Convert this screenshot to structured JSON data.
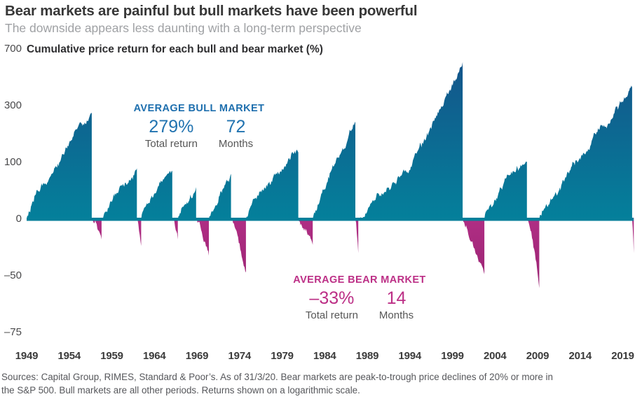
{
  "header": {
    "title": "Bear markets are painful but bull markets have been powerful",
    "subtitle": "The downside appears less daunting with a long-term perspective",
    "axis_title": "Cumulative price return for each bull and bear market (%)"
  },
  "annotations": {
    "bull": {
      "heading": "AVERAGE BULL MARKET",
      "return_value": "279%",
      "return_label": "Total return",
      "months_value": "72",
      "months_label": "Months"
    },
    "bear": {
      "heading": "AVERAGE BEAR MARKET",
      "return_value": "–33%",
      "return_label": "Total return",
      "months_value": "14",
      "months_label": "Months"
    }
  },
  "footer": {
    "source_line1": "Sources: Capital Group, RIMES, Standard & Poor’s. As of 31/3/20. Bear markets are peak-to-trough price declines of 20% or more in",
    "source_line2": "the S&P 500. Bull markets are all other periods. Returns shown on a logarithmic scale."
  },
  "colors": {
    "bull_area_top": "#14548a",
    "bull_area_bottom": "#04809b",
    "bear_area_top": "#b02e84",
    "bear_area_bottom": "#8a1c67",
    "zero_line": "#067f9a",
    "bull_text": "#2173b0",
    "bear_text": "#bc2f86"
  },
  "chart_data": {
    "type": "area",
    "title": "Cumulative price return for each bull and bear market (%)",
    "scale": "logarithmic",
    "grid": "off",
    "unit": "%",
    "y_axis": {
      "ticks": [
        700,
        300,
        100,
        0,
        -50,
        -75
      ]
    },
    "x_axis": {
      "ticks": [
        1949,
        1954,
        1959,
        1964,
        1969,
        1974,
        1979,
        1984,
        1989,
        1994,
        1999,
        2004,
        2009,
        2014,
        2019
      ]
    },
    "averages": {
      "bull": {
        "total_return_pct": 279,
        "months": 72
      },
      "bear": {
        "total_return_pct": -33,
        "months": 14
      }
    },
    "segments": [
      {
        "kind": "bull",
        "start": 1949.0,
        "end": 1956.65,
        "return_pct": 267,
        "months": 87,
        "curve": 0.8
      },
      {
        "kind": "bear",
        "start": 1956.65,
        "end": 1957.8,
        "return_pct": -22,
        "months": 14,
        "curve": 1.3
      },
      {
        "kind": "bull",
        "start": 1957.8,
        "end": 1961.95,
        "return_pct": 86,
        "months": 50,
        "curve": 0.95
      },
      {
        "kind": "bear",
        "start": 1961.95,
        "end": 1962.45,
        "return_pct": -28,
        "months": 6,
        "curve": 1.3
      },
      {
        "kind": "bull",
        "start": 1962.45,
        "end": 1966.1,
        "return_pct": 80,
        "months": 44,
        "curve": 0.95
      },
      {
        "kind": "bear",
        "start": 1966.1,
        "end": 1966.75,
        "return_pct": -22,
        "months": 8,
        "curve": 1.3
      },
      {
        "kind": "bull",
        "start": 1966.75,
        "end": 1968.9,
        "return_pct": 48,
        "months": 26,
        "curve": 0.9
      },
      {
        "kind": "bear",
        "start": 1968.9,
        "end": 1970.4,
        "return_pct": -36,
        "months": 18,
        "curve": 1.3
      },
      {
        "kind": "bull",
        "start": 1970.4,
        "end": 1973.0,
        "return_pct": 74,
        "months": 31,
        "curve": 0.75
      },
      {
        "kind": "bear",
        "start": 1973.0,
        "end": 1974.75,
        "return_pct": -48,
        "months": 21,
        "curve": 1.3
      },
      {
        "kind": "bull",
        "start": 1974.75,
        "end": 1980.9,
        "return_pct": 126,
        "months": 74,
        "curve": 0.7
      },
      {
        "kind": "bear",
        "start": 1980.9,
        "end": 1982.6,
        "return_pct": -27,
        "months": 20,
        "curve": 1.3
      },
      {
        "kind": "bull",
        "start": 1982.6,
        "end": 1987.6,
        "return_pct": 229,
        "months": 60,
        "curve": 0.95
      },
      {
        "kind": "bear",
        "start": 1987.6,
        "end": 1987.95,
        "return_pct": -34,
        "months": 4,
        "curve": 1.2
      },
      {
        "kind": "bull",
        "start": 1987.95,
        "end": 2000.2,
        "return_pct": 582,
        "months": 147,
        "curve": 1.35
      },
      {
        "kind": "bear",
        "start": 2000.2,
        "end": 2002.75,
        "return_pct": -49,
        "months": 31,
        "curve": 1.3
      },
      {
        "kind": "bull",
        "start": 2002.75,
        "end": 2007.75,
        "return_pct": 101,
        "months": 60,
        "curve": 0.75
      },
      {
        "kind": "bear",
        "start": 2007.75,
        "end": 2009.2,
        "return_pct": -57,
        "months": 17,
        "curve": 1.6
      },
      {
        "kind": "bull",
        "start": 2009.2,
        "end": 2020.1,
        "return_pct": 401,
        "months": 131,
        "curve": 0.9
      },
      {
        "kind": "bear",
        "start": 2020.1,
        "end": 2020.3,
        "return_pct": -34,
        "months": 2,
        "curve": 1.1
      }
    ]
  }
}
